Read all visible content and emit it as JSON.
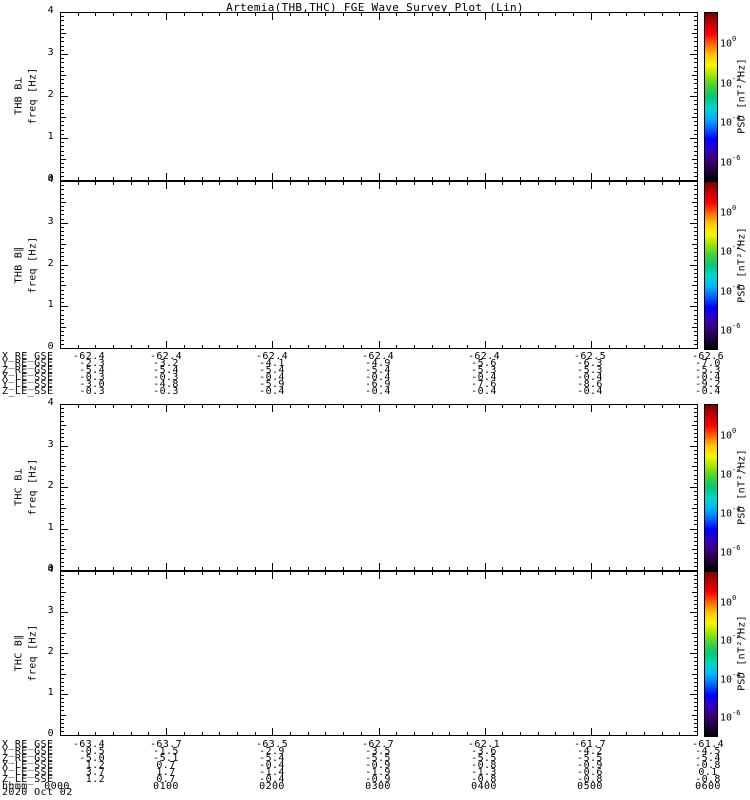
{
  "title": "Artemia(THB,THC) FGE Wave Survey Plot (Lin)",
  "y_axis": {
    "label": "freq [Hz]",
    "ticks": [
      "4",
      "3",
      "2",
      "1",
      "0"
    ]
  },
  "panels": [
    {
      "name": "THB B⊥"
    },
    {
      "name": "THB B∥"
    },
    {
      "name": "THC B⊥"
    },
    {
      "name": "THC B∥"
    }
  ],
  "colorbar": {
    "title": "PSD [nT²/Hz]",
    "ticks": [
      {
        "base": "10",
        "exp": "0"
      },
      {
        "base": "10",
        "exp": "-2"
      },
      {
        "base": "10",
        "exp": "-4"
      },
      {
        "base": "10",
        "exp": "-6"
      }
    ],
    "gradient": [
      "#7a0000",
      "#c30000",
      "#ff0000",
      "#ff6a00",
      "#ffc800",
      "#f5f500",
      "#9be400",
      "#3cd23c",
      "#00c87d",
      "#00d7c8",
      "#00b4ff",
      "#0064ff",
      "#0000ff",
      "#3000c8",
      "#3c0078",
      "#1e0040",
      "#000000"
    ]
  },
  "middle_block": {
    "rows": [
      {
        "label": "X_RE_GSE",
        "values": [
          "-62.4",
          "-62.4",
          "-62.4",
          "-62.4",
          "-62.4",
          "-62.5",
          "-62.6"
        ]
      },
      {
        "label": "Y_RE_GSE",
        "values": [
          "-2.3",
          "-3.2",
          "-4.1",
          "-4.9",
          "-5.6",
          "-6.3",
          "-7.0"
        ]
      },
      {
        "label": "Z_RE_GSE",
        "values": [
          "-5.4",
          "-5.4",
          "-5.4",
          "-5.4",
          "-5.3",
          "-5.3",
          "-5.3"
        ]
      },
      {
        "label": "X_LE_SSE",
        "values": [
          "-0.3",
          "-0.3",
          "-0.4",
          "-0.4",
          "-0.4",
          "-0.4",
          "-0.4"
        ]
      },
      {
        "label": "Y_LE_SSE",
        "values": [
          "-3.0",
          "-4.8",
          "-5.9",
          "-6.9",
          "-7.6",
          "-8.6",
          "-9.2"
        ]
      },
      {
        "label": "Z_LE_SSE",
        "values": [
          "-0.3",
          "-0.3",
          "-0.4",
          "-0.4",
          "-0.4",
          "-0.4",
          "-0.4"
        ]
      }
    ]
  },
  "bottom_block": {
    "rows": [
      {
        "label": "X_RE_GSE",
        "values": [
          "-63.4",
          "-63.7",
          "-63.5",
          "-62.7",
          "-62.1",
          "-61.7",
          "-61.4"
        ]
      },
      {
        "label": "Y_RE_GSE",
        "values": [
          "-0.5",
          "-1.5",
          "-2.9",
          "-3.5",
          "-3.6",
          "-4.2",
          "-4.5"
        ]
      },
      {
        "label": "Z_RE_GSE",
        "values": [
          "-5.0",
          "-5.1",
          "-5.4",
          "-5.5",
          "-5.5",
          "-5.5",
          "-5.4"
        ]
      },
      {
        "label": "X_LE_SSE",
        "values": [
          "1.2",
          "0.7",
          "-0.4",
          "-0.9",
          "-0.8",
          "-0.9",
          "-0.8"
        ]
      },
      {
        "label": "Y_LE_SSE",
        "values": [
          "3.7",
          "1.7",
          "-1.4",
          "-1.9",
          "-1.3",
          "-0.6",
          "0.1"
        ]
      },
      {
        "label": "Z_LE_SSE",
        "values": [
          "1.2",
          "0.7",
          "-0.4",
          "-0.9",
          "-0.8",
          "-0.8",
          "-0.8"
        ]
      },
      {
        "label": "hhmm",
        "values": [
          "0000",
          "0100",
          "0200",
          "0300",
          "0400",
          "0500",
          "0600"
        ]
      }
    ],
    "date": "2020 Oct 02"
  },
  "chart_data": {
    "type": "heatmap",
    "title": "Artemia(THB,THC) FGE Wave Survey Plot (Lin)",
    "panels": [
      {
        "ylabel": "THB B⊥ freq [Hz]",
        "ylim": [
          0,
          4
        ],
        "values": [],
        "note": "spectrogram blank (no data drawn)"
      },
      {
        "ylabel": "THB B∥ freq [Hz]",
        "ylim": [
          0,
          4
        ],
        "values": [],
        "note": "spectrogram blank (no data drawn)"
      },
      {
        "ylabel": "THC B⊥ freq [Hz]",
        "ylim": [
          0,
          4
        ],
        "values": [],
        "note": "spectrogram blank (no data drawn)"
      },
      {
        "ylabel": "THC B∥ freq [Hz]",
        "ylim": [
          0,
          4
        ],
        "values": [],
        "note": "spectrogram blank (no data drawn)"
      }
    ],
    "x": {
      "label": "hhmm, 2020 Oct 02",
      "ticks": [
        "0000",
        "0100",
        "0200",
        "0300",
        "0400",
        "0500",
        "0600"
      ]
    },
    "colorbar": {
      "label": "PSD [nT²/Hz]",
      "tick_values": [
        1,
        0.01,
        0.0001,
        1e-06
      ]
    },
    "ephemeris_thb": {
      "labels": [
        "X_RE_GSE",
        "Y_RE_GSE",
        "Z_RE_GSE",
        "X_LE_SSE",
        "Y_LE_SSE",
        "Z_LE_SSE"
      ],
      "columns": [
        [
          -62.4,
          -2.3,
          -5.4,
          -0.3,
          -3.0,
          -0.3
        ],
        [
          -62.4,
          -3.2,
          -5.4,
          -0.3,
          -4.8,
          -0.3
        ],
        [
          -62.4,
          -4.1,
          -5.4,
          -0.4,
          -5.9,
          -0.4
        ],
        [
          -62.4,
          -4.9,
          -5.4,
          -0.4,
          -6.9,
          -0.4
        ],
        [
          -62.4,
          -5.6,
          -5.3,
          -0.4,
          -7.6,
          -0.4
        ],
        [
          -62.5,
          -6.3,
          -5.3,
          -0.4,
          -8.6,
          -0.4
        ],
        [
          -62.6,
          -7.0,
          -5.3,
          -0.4,
          -9.2,
          -0.4
        ]
      ]
    },
    "ephemeris_thc": {
      "labels": [
        "X_RE_GSE",
        "Y_RE_GSE",
        "Z_RE_GSE",
        "X_LE_SSE",
        "Y_LE_SSE",
        "Z_LE_SSE"
      ],
      "columns": [
        [
          -63.4,
          -0.5,
          -5.0,
          1.2,
          3.7,
          1.2
        ],
        [
          -63.7,
          -1.5,
          -5.1,
          0.7,
          1.7,
          0.7
        ],
        [
          -63.5,
          -2.9,
          -5.4,
          -0.4,
          -1.4,
          -0.4
        ],
        [
          -62.7,
          -3.5,
          -5.5,
          -0.9,
          -1.9,
          -0.9
        ],
        [
          -62.1,
          -3.6,
          -5.5,
          -0.8,
          -1.3,
          -0.8
        ],
        [
          -61.7,
          -4.2,
          -5.5,
          -0.9,
          -0.6,
          -0.8
        ],
        [
          -61.4,
          -4.5,
          -5.4,
          -0.8,
          0.1,
          -0.8
        ]
      ]
    }
  }
}
